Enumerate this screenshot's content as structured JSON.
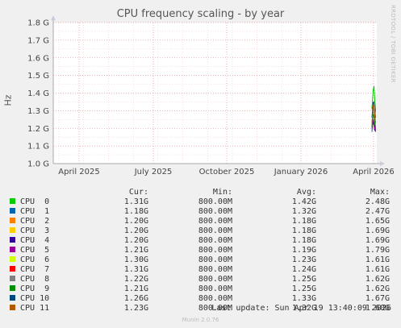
{
  "chart_data": {
    "type": "line",
    "title": "CPU frequency scaling - by year",
    "ylabel": "Hz",
    "y_ticks": [
      "1.0 G",
      "1.1 G",
      "1.2 G",
      "1.3 G",
      "1.4 G",
      "1.5 G",
      "1.6 G",
      "1.7 G",
      "1.8 G"
    ],
    "y_tick_values": [
      1.0,
      1.1,
      1.2,
      1.3,
      1.4,
      1.5,
      1.6,
      1.7,
      1.8
    ],
    "ylim": [
      1.0,
      1.8
    ],
    "x_ticks": [
      "April 2025",
      "July 2025",
      "October 2025",
      "January 2026",
      "April 2026"
    ],
    "grid": true,
    "legend_headers": [
      "Cur:",
      "Min:",
      "Avg:",
      "Max:"
    ],
    "series": [
      {
        "name": "CPU  0",
        "color": "#00cc00",
        "cur": "1.31G",
        "min": "800.00M",
        "avg": "1.42G",
        "max": "2.48G"
      },
      {
        "name": "CPU  1",
        "color": "#0066b3",
        "cur": "1.18G",
        "min": "800.00M",
        "avg": "1.32G",
        "max": "2.47G"
      },
      {
        "name": "CPU  2",
        "color": "#ff8000",
        "cur": "1.20G",
        "min": "800.00M",
        "avg": "1.18G",
        "max": "1.65G"
      },
      {
        "name": "CPU  3",
        "color": "#ffcc00",
        "cur": "1.20G",
        "min": "800.00M",
        "avg": "1.18G",
        "max": "1.69G"
      },
      {
        "name": "CPU  4",
        "color": "#330099",
        "cur": "1.20G",
        "min": "800.00M",
        "avg": "1.18G",
        "max": "1.69G"
      },
      {
        "name": "CPU  5",
        "color": "#990099",
        "cur": "1.21G",
        "min": "800.00M",
        "avg": "1.19G",
        "max": "1.79G"
      },
      {
        "name": "CPU  6",
        "color": "#ccff00",
        "cur": "1.30G",
        "min": "800.00M",
        "avg": "1.23G",
        "max": "1.61G"
      },
      {
        "name": "CPU  7",
        "color": "#ff0000",
        "cur": "1.31G",
        "min": "800.00M",
        "avg": "1.24G",
        "max": "1.61G"
      },
      {
        "name": "CPU  8",
        "color": "#808080",
        "cur": "1.22G",
        "min": "800.00M",
        "avg": "1.25G",
        "max": "1.62G"
      },
      {
        "name": "CPU  9",
        "color": "#008f00",
        "cur": "1.21G",
        "min": "800.00M",
        "avg": "1.25G",
        "max": "1.62G"
      },
      {
        "name": "CPU 10",
        "color": "#00487d",
        "cur": "1.26G",
        "min": "800.00M",
        "avg": "1.33G",
        "max": "1.67G"
      },
      {
        "name": "CPU 11",
        "color": "#b35a00",
        "cur": "1.23G",
        "min": "800.00M",
        "avg": "1.32G",
        "max": "1.60G"
      }
    ]
  },
  "last_update": "Last update: Sun Apr 19 13:40:09 2026",
  "side_text": "RRDTOOL / TOBI OETIKER",
  "footer": "Munin 2.0.76"
}
